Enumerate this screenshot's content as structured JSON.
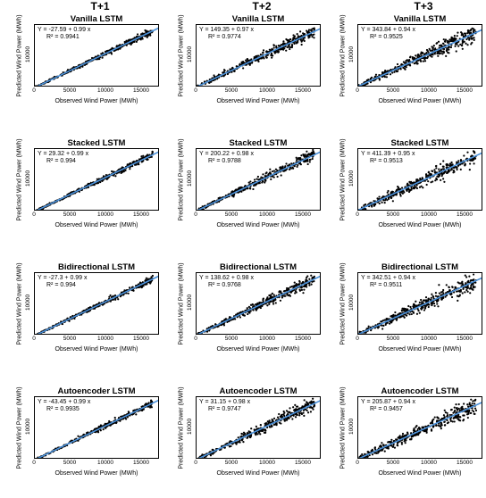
{
  "columns": [
    "T+1",
    "T+2",
    "T+3"
  ],
  "rows": [
    "Vanilla LSTM",
    "Stacked LSTM",
    "Bidirectional LSTM",
    "Autoencoder LSTM"
  ],
  "chart_data": {
    "type": "scatter",
    "xlabel": "Observed Wind Power (MWh)",
    "ylabel": "Predicted Wind Power (MWh)",
    "xlim": [
      0,
      17500
    ],
    "ylim": [
      0,
      18000
    ],
    "x_ticks": [
      "0",
      "5000",
      "10000",
      "15000"
    ],
    "y_ticks": [
      "10000"
    ],
    "colors": {
      "points": "#000000",
      "fit_line": "#4a90d9"
    },
    "panels": [
      {
        "row": "Vanilla LSTM",
        "col": "T+1",
        "eq": "Y = -27.59 + 0.99 x",
        "r2": "R² = 0.9941",
        "intercept": -27.59,
        "slope": 0.99,
        "r2_value": 0.9941
      },
      {
        "row": "Vanilla LSTM",
        "col": "T+2",
        "eq": "Y = 149.35 + 0.97 x",
        "r2": "R² = 0.9774",
        "intercept": 149.35,
        "slope": 0.97,
        "r2_value": 0.9774
      },
      {
        "row": "Vanilla LSTM",
        "col": "T+3",
        "eq": "Y = 343.84 + 0.94 x",
        "r2": "R² = 0.9525",
        "intercept": 343.84,
        "slope": 0.94,
        "r2_value": 0.9525
      },
      {
        "row": "Stacked LSTM",
        "col": "T+1",
        "eq": "Y = 29.32 + 0.99 x",
        "r2": "R² = 0.994",
        "intercept": 29.32,
        "slope": 0.99,
        "r2_value": 0.994
      },
      {
        "row": "Stacked LSTM",
        "col": "T+2",
        "eq": "Y = 200.22 + 0.98 x",
        "r2": "R² = 0.9788",
        "intercept": 200.22,
        "slope": 0.98,
        "r2_value": 0.9788
      },
      {
        "row": "Stacked LSTM",
        "col": "T+3",
        "eq": "Y = 411.39 + 0.95 x",
        "r2": "R² = 0.9513",
        "intercept": 411.39,
        "slope": 0.95,
        "r2_value": 0.9513
      },
      {
        "row": "Bidirectional LSTM",
        "col": "T+1",
        "eq": "Y = -27.3 + 0.99 x",
        "r2": "R² = 0.994",
        "intercept": -27.3,
        "slope": 0.99,
        "r2_value": 0.994
      },
      {
        "row": "Bidirectional LSTM",
        "col": "T+2",
        "eq": "Y = 138.62 + 0.98 x",
        "r2": "R² = 0.9768",
        "intercept": 138.62,
        "slope": 0.98,
        "r2_value": 0.9768
      },
      {
        "row": "Bidirectional LSTM",
        "col": "T+3",
        "eq": "Y = 342.51 + 0.94 x",
        "r2": "R² = 0.9511",
        "intercept": 342.51,
        "slope": 0.94,
        "r2_value": 0.9511
      },
      {
        "row": "Autoencoder LSTM",
        "col": "T+1",
        "eq": "Y = -43.45 + 0.99 x",
        "r2": "R² = 0.9935",
        "intercept": -43.45,
        "slope": 0.99,
        "r2_value": 0.9935
      },
      {
        "row": "Autoencoder LSTM",
        "col": "T+2",
        "eq": "Y = 31.15 + 0.98 x",
        "r2": "R² = 0.9747",
        "intercept": 31.15,
        "slope": 0.98,
        "r2_value": 0.9747
      },
      {
        "row": "Autoencoder LSTM",
        "col": "T+3",
        "eq": "Y = 205.87 + 0.94 x",
        "r2": "R² = 0.9457",
        "intercept": 205.87,
        "slope": 0.94,
        "r2_value": 0.9457
      }
    ]
  }
}
